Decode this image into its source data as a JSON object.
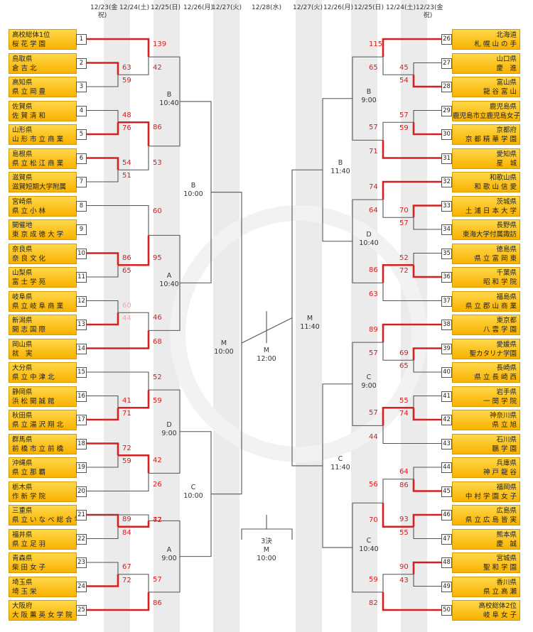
{
  "dates_left": [
    {
      "date": "12/23",
      "day": "(金祝)"
    },
    {
      "date": "12/24",
      "day": "(土)"
    },
    {
      "date": "12/25",
      "day": "(日)"
    },
    {
      "date": "12/26",
      "day": "(月)"
    },
    {
      "date": "12/27",
      "day": "(火)"
    }
  ],
  "date_center": {
    "date": "12/28",
    "day": "(水)"
  },
  "dates_right": [
    {
      "date": "12/27",
      "day": "(火)"
    },
    {
      "date": "12/26",
      "day": "(月)"
    },
    {
      "date": "12/25",
      "day": "(日)"
    },
    {
      "date": "12/24",
      "day": "(土)"
    },
    {
      "date": "12/23",
      "day": "(金祝)"
    }
  ],
  "left_teams": [
    {
      "pref": "高校総体1位",
      "name": "桜 花 学 園",
      "num": "1"
    },
    {
      "pref": "鳥取県",
      "name": "倉 吉 北",
      "num": "2"
    },
    {
      "pref": "高知県",
      "name": "県 立 岡 豊",
      "num": "3"
    },
    {
      "pref": "佐賀県",
      "name": "佐 賀 清 和",
      "num": "4"
    },
    {
      "pref": "山形県",
      "name": "山 形 市 立 商 業",
      "num": "5"
    },
    {
      "pref": "島根県",
      "name": "県 立 松 江 商 業",
      "num": "6"
    },
    {
      "pref": "滋賀県",
      "name": "滋賀短期大学附属",
      "num": "7"
    },
    {
      "pref": "宮崎県",
      "name": "県 立 小 林",
      "num": "8"
    },
    {
      "pref": "開催地",
      "name": "東 京 成 徳 大 学",
      "num": "9"
    },
    {
      "pref": "奈良県",
      "name": "奈 良 文 化",
      "num": "10"
    },
    {
      "pref": "山梨県",
      "name": "富 士 学 苑",
      "num": "11"
    },
    {
      "pref": "岐阜県",
      "name": "県 立 岐 阜 商 業",
      "num": "12"
    },
    {
      "pref": "新潟県",
      "name": "開 志 国 際",
      "num": "13"
    },
    {
      "pref": "岡山県",
      "name": "就　実",
      "num": "14"
    },
    {
      "pref": "大分県",
      "name": "県 立 中 津 北",
      "num": "15"
    },
    {
      "pref": "静岡県",
      "name": "浜 松 開 誠 館",
      "num": "16"
    },
    {
      "pref": "秋田県",
      "name": "県 立 湯 沢 翔 北",
      "num": "17"
    },
    {
      "pref": "群馬県",
      "name": "前 橋 市 立 前 橋",
      "num": "18"
    },
    {
      "pref": "沖縄県",
      "name": "県 立 那 覇",
      "num": "19"
    },
    {
      "pref": "栃木県",
      "name": "作 新 学 院",
      "num": "20"
    },
    {
      "pref": "三重県",
      "name": "県 立 い な べ 総 合 学 園",
      "num": "21"
    },
    {
      "pref": "福井県",
      "name": "県 立 足 羽",
      "num": "22"
    },
    {
      "pref": "青森県",
      "name": "柴 田 女 子",
      "num": "23"
    },
    {
      "pref": "埼玉県",
      "name": "埼 玉 栄",
      "num": "24"
    },
    {
      "pref": "大阪府",
      "name": "大 阪 薫 英 女 学 院",
      "num": "25"
    }
  ],
  "right_teams": [
    {
      "pref": "北海道",
      "name": "札 幌 山 の 手",
      "num": "26"
    },
    {
      "pref": "山口県",
      "name": "慶　進",
      "num": "27"
    },
    {
      "pref": "富山県",
      "name": "龍 谷 富 山",
      "num": "28"
    },
    {
      "pref": "鹿児島県",
      "name": "鹿児島市立鹿児島女子",
      "num": "29"
    },
    {
      "pref": "京都府",
      "name": "京 都 精 華 学 園",
      "num": "30"
    },
    {
      "pref": "愛知県",
      "name": "星　城",
      "num": "31"
    },
    {
      "pref": "和歌山県",
      "name": "和 歌 山 信 愛",
      "num": "32"
    },
    {
      "pref": "茨城県",
      "name": "土 浦 日 本 大 学",
      "num": "33"
    },
    {
      "pref": "長野県",
      "name": "東海大学付属諏訪",
      "num": "34"
    },
    {
      "pref": "徳島県",
      "name": "県 立 富 岡 東",
      "num": "35"
    },
    {
      "pref": "千葉県",
      "name": "昭 和 学 院",
      "num": "36"
    },
    {
      "pref": "福島県",
      "name": "県 立 郡 山 商 業",
      "num": "37"
    },
    {
      "pref": "東京都",
      "name": "八 雲 学 園",
      "num": "38"
    },
    {
      "pref": "愛媛県",
      "name": "聖カタリナ学園",
      "num": "39"
    },
    {
      "pref": "長崎県",
      "name": "県 立 長 崎 西",
      "num": "40"
    },
    {
      "pref": "岩手県",
      "name": "一 関 学 院",
      "num": "41"
    },
    {
      "pref": "神奈川県",
      "name": "県 立 旭",
      "num": "42"
    },
    {
      "pref": "石川県",
      "name": "鵬 学 園",
      "num": "43"
    },
    {
      "pref": "兵庫県",
      "name": "神 戸 龍 谷",
      "num": "44"
    },
    {
      "pref": "福岡県",
      "name": "中 村 学 園 女 子",
      "num": "45"
    },
    {
      "pref": "広島県",
      "name": "県 立 広 島 皆 実",
      "num": "46"
    },
    {
      "pref": "熊本県",
      "name": "慶　誠",
      "num": "47"
    },
    {
      "pref": "宮城県",
      "name": "聖 和 学 園",
      "num": "48"
    },
    {
      "pref": "香川県",
      "name": "県 立 高 瀬",
      "num": "49"
    },
    {
      "pref": "高校総体2位",
      "name": "岐 阜 女 子",
      "num": "50"
    }
  ],
  "scores": {
    "left_r1": [
      {
        "top": "63",
        "bot": "59"
      },
      {
        "top": "48",
        "bot": "76"
      },
      {
        "top": "54",
        "bot": "51"
      },
      {
        "top": "86",
        "bot": "65"
      },
      {
        "top": "60",
        "bot": "44"
      },
      {
        "top": "41",
        "bot": "71"
      },
      {
        "top": "72",
        "bot": "59"
      },
      {
        "top": "89",
        "bot": "84"
      },
      {
        "top": "67",
        "bot": "72"
      }
    ],
    "left_r2": [
      {
        "top": "139",
        "bot": "42"
      },
      {
        "top": "86",
        "bot": "53"
      },
      {
        "top": "60",
        "bot": "95"
      },
      {
        "top": "46",
        "bot": "68"
      },
      {
        "top": "52",
        "bot": "59"
      },
      {
        "top": "42",
        "bot": "26"
      },
      {
        "top": "47",
        "bot": "72"
      },
      {
        "top": "57",
        "bot": "86"
      }
    ],
    "right_r1": [
      {
        "top": "45",
        "bot": "54"
      },
      {
        "top": "57",
        "bot": "59"
      },
      {
        "top": "70",
        "bot": "57"
      },
      {
        "top": "52",
        "bot": "72"
      },
      {
        "top": "69",
        "bot": "65"
      },
      {
        "top": "55",
        "bot": "74"
      },
      {
        "top": "64",
        "bot": "86"
      },
      {
        "top": "93",
        "bot": "55"
      },
      {
        "top": "90",
        "bot": "43"
      }
    ],
    "right_r2": [
      {
        "top": "115",
        "bot": "65"
      },
      {
        "top": "57",
        "bot": "71"
      },
      {
        "top": "74",
        "bot": "64"
      },
      {
        "top": "86",
        "bot": "63"
      },
      {
        "top": "89",
        "bot": "57"
      },
      {
        "top": "57",
        "bot": "44"
      },
      {
        "top": "56",
        "bot": "70"
      },
      {
        "top": "59",
        "bot": "82"
      }
    ]
  },
  "rounds": {
    "left_r3": [
      {
        "court": "B",
        "time": "10:40"
      },
      {
        "court": "A",
        "time": "10:40"
      },
      {
        "court": "D",
        "time": "9:00"
      },
      {
        "court": "A",
        "time": "9:00"
      }
    ],
    "left_qf": [
      {
        "court": "B",
        "time": "10:00"
      },
      {
        "court": "C",
        "time": "10:00"
      }
    ],
    "left_sf": {
      "court": "M",
      "time": "10:00"
    },
    "final": {
      "court": "M",
      "time": "12:00"
    },
    "third": {
      "label": "3決",
      "court": "M",
      "time": "10:00"
    },
    "right_sf": {
      "court": "M",
      "time": "11:40"
    },
    "right_qf": [
      {
        "court": "B",
        "time": "11:40"
      },
      {
        "court": "C",
        "time": "11:40"
      }
    ],
    "right_r3": [
      {
        "court": "B",
        "time": "9:00"
      },
      {
        "court": "D",
        "time": "10:40"
      },
      {
        "court": "C",
        "time": "9:00"
      },
      {
        "court": "C",
        "time": "10:40"
      }
    ]
  },
  "colors": {
    "win": "#d42020",
    "line": "#555555",
    "team_bg": "#ffc21a",
    "stripe": "#ebebeb"
  }
}
